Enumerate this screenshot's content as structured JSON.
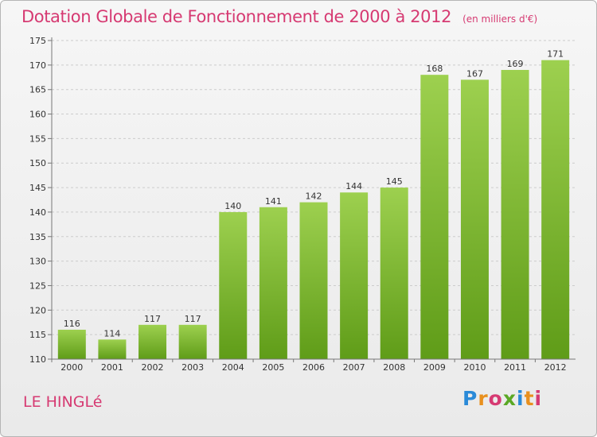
{
  "header": {
    "title": "Dotation Globale de Fonctionnement de 2000 à 2012",
    "unit": "(en milliers d'€)"
  },
  "footer": {
    "place": "LE HINGLé",
    "logo_letters": [
      "P",
      "r",
      "o",
      "x",
      "i",
      "t",
      "i"
    ]
  },
  "colors": {
    "bar_top": "#9dd04f",
    "bar_bottom": "#5f9c18",
    "text_accent": "#d63a72",
    "grid": "#cccccc"
  },
  "chart_data": {
    "type": "bar",
    "categories": [
      "2000",
      "2001",
      "2002",
      "2003",
      "2004",
      "2005",
      "2006",
      "2007",
      "2008",
      "2009",
      "2010",
      "2011",
      "2012"
    ],
    "values": [
      116,
      114,
      117,
      117,
      140,
      141,
      142,
      144,
      145,
      168,
      167,
      169,
      171
    ],
    "data_labels": [
      "116",
      "114",
      "117",
      "117",
      "140",
      "141",
      "142",
      "144",
      "145",
      "168",
      "167",
      "169",
      "171"
    ],
    "y_ticks": [
      "110",
      "115",
      "120",
      "125",
      "130",
      "135",
      "140",
      "145",
      "150",
      "155",
      "160",
      "165",
      "170",
      "175"
    ],
    "ylim": [
      110,
      175
    ],
    "grid": true,
    "legend": "none"
  }
}
